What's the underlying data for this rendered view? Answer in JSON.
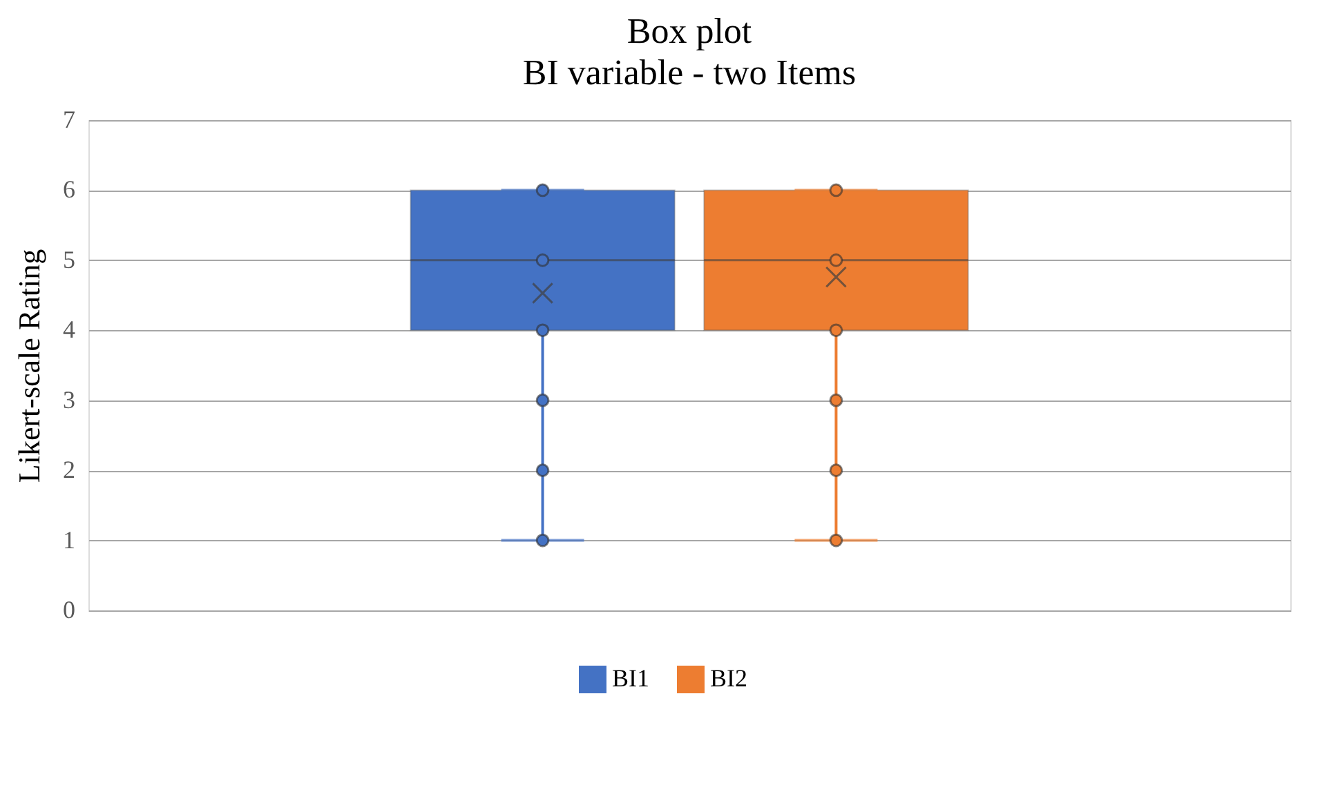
{
  "chart_data": {
    "type": "box",
    "title": "Box plot",
    "subtitle": "BI variable - two Items",
    "ylabel": "Likert-scale Rating",
    "categories": [
      null
    ],
    "series": [
      {
        "name": "BI1",
        "color": "#4472c4",
        "boxes": [
          {
            "low": 1,
            "q1": 4,
            "median": 5,
            "q3": 6,
            "high": 6,
            "mean": 4.53
          }
        ]
      },
      {
        "type": "scatter",
        "color": "#4472c4",
        "x": [
          null,
          null,
          null,
          null,
          null,
          null
        ],
        "values": [
          1,
          2,
          3,
          4,
          5,
          6
        ]
      },
      {
        "name": "BI2",
        "color": "#ed7d31",
        "boxes": [
          {
            "low": 1,
            "q1": 4,
            "median": 5,
            "q3": 6,
            "high": 6,
            "mean": 4.76
          }
        ]
      },
      {
        "type": "scatter",
        "color": "#ed7d31",
        "x": [
          null,
          null,
          null,
          null,
          null,
          null
        ],
        "values": [
          1,
          2,
          3,
          4,
          5,
          6
        ]
      }
    ],
    "ylim": [
      0,
      7
    ],
    "yticks": [
      0,
      1,
      2,
      3,
      4,
      5,
      6,
      7
    ],
    "grid": "y",
    "legend": "bottom",
    "tick_labels": "y"
  }
}
